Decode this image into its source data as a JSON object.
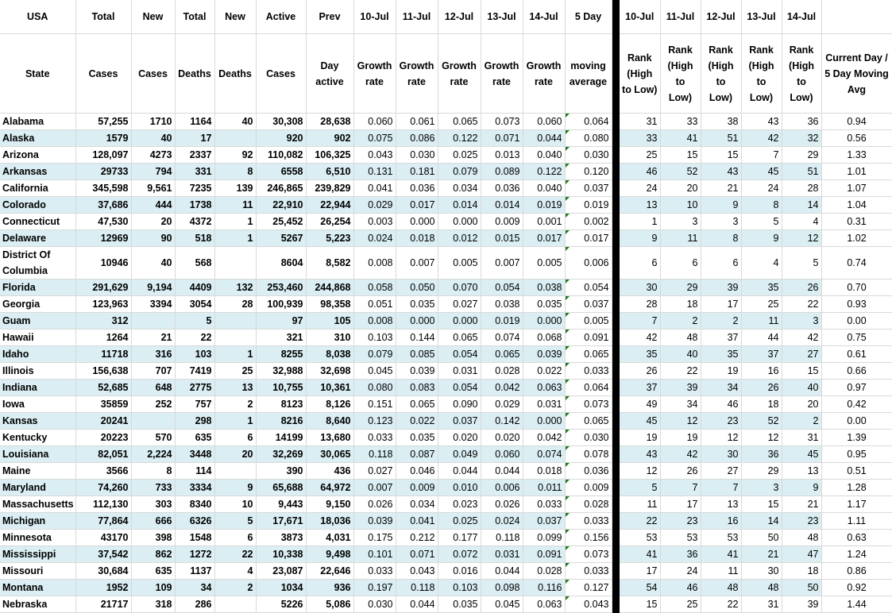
{
  "header_row1": [
    "USA",
    "Total",
    "New",
    "Total",
    "New",
    "Active",
    "Prev",
    "10-Jul",
    "11-Jul",
    "12-Jul",
    "13-Jul",
    "14-Jul",
    "5 Day",
    "10-Jul",
    "11-Jul",
    "12-Jul",
    "13-Jul",
    "14-Jul",
    ""
  ],
  "header_row2": [
    "State",
    "Cases",
    "Cases",
    "Deaths",
    "Deaths",
    "Cases",
    "Day active",
    "Growth rate",
    "Growth rate",
    "Growth rate",
    "Growth rate",
    "Growth rate",
    "moving average",
    "Rank (High to Low)",
    "Rank (High to Low)",
    "Rank (High to Low)",
    "Rank (High to Low)",
    "Rank (High to Low)",
    "Current Day / 5 Day Moving Avg"
  ],
  "colors": {
    "stripe": "#daeef3",
    "separator": "#000000",
    "gridline": "#d9d9d9",
    "formula_marker": "#1e7b1e"
  },
  "rows": [
    [
      "Alabama",
      "57,255",
      "1710",
      "1164",
      "40",
      "30,308",
      "28,638",
      "0.060",
      "0.061",
      "0.065",
      "0.073",
      "0.060",
      "0.064",
      "31",
      "33",
      "38",
      "43",
      "36",
      "0.94"
    ],
    [
      "Alaska",
      "1579",
      "40",
      "17",
      "",
      "920",
      "902",
      "0.075",
      "0.086",
      "0.122",
      "0.071",
      "0.044",
      "0.080",
      "33",
      "41",
      "51",
      "42",
      "32",
      "0.56"
    ],
    [
      "Arizona",
      "128,097",
      "4273",
      "2337",
      "92",
      "110,082",
      "106,325",
      "0.043",
      "0.030",
      "0.025",
      "0.013",
      "0.040",
      "0.030",
      "25",
      "15",
      "15",
      "7",
      "29",
      "1.33"
    ],
    [
      "Arkansas",
      "29733",
      "794",
      "331",
      "8",
      "6558",
      "6,510",
      "0.131",
      "0.181",
      "0.079",
      "0.089",
      "0.122",
      "0.120",
      "46",
      "52",
      "43",
      "45",
      "51",
      "1.01"
    ],
    [
      "California",
      "345,598",
      "9,561",
      "7235",
      "139",
      "246,865",
      "239,829",
      "0.041",
      "0.036",
      "0.034",
      "0.036",
      "0.040",
      "0.037",
      "24",
      "20",
      "21",
      "24",
      "28",
      "1.07"
    ],
    [
      "Colorado",
      "37,686",
      "444",
      "1738",
      "11",
      "22,910",
      "22,944",
      "0.029",
      "0.017",
      "0.014",
      "0.014",
      "0.019",
      "0.019",
      "13",
      "10",
      "9",
      "8",
      "14",
      "1.04"
    ],
    [
      "Connecticut",
      "47,530",
      "20",
      "4372",
      "1",
      "25,452",
      "26,254",
      "0.003",
      "0.000",
      "0.000",
      "0.009",
      "0.001",
      "0.002",
      "1",
      "3",
      "3",
      "5",
      "4",
      "0.31"
    ],
    [
      "Delaware",
      "12969",
      "90",
      "518",
      "1",
      "5267",
      "5,223",
      "0.024",
      "0.018",
      "0.012",
      "0.015",
      "0.017",
      "0.017",
      "9",
      "11",
      "8",
      "9",
      "12",
      "1.02"
    ],
    [
      "District Of Columbia",
      "10946",
      "40",
      "568",
      "",
      "8604",
      "8,582",
      "0.008",
      "0.007",
      "0.005",
      "0.007",
      "0.005",
      "0.006",
      "6",
      "6",
      "6",
      "4",
      "5",
      "0.74"
    ],
    [
      "Florida",
      "291,629",
      "9,194",
      "4409",
      "132",
      "253,460",
      "244,868",
      "0.058",
      "0.050",
      "0.070",
      "0.054",
      "0.038",
      "0.054",
      "30",
      "29",
      "39",
      "35",
      "26",
      "0.70"
    ],
    [
      "Georgia",
      "123,963",
      "3394",
      "3054",
      "28",
      "100,939",
      "98,358",
      "0.051",
      "0.035",
      "0.027",
      "0.038",
      "0.035",
      "0.037",
      "28",
      "18",
      "17",
      "25",
      "22",
      "0.93"
    ],
    [
      "Guam",
      "312",
      "",
      "5",
      "",
      "97",
      "105",
      "0.008",
      "0.000",
      "0.000",
      "0.019",
      "0.000",
      "0.005",
      "7",
      "2",
      "2",
      "11",
      "3",
      "0.00"
    ],
    [
      "Hawaii",
      "1264",
      "21",
      "22",
      "",
      "321",
      "310",
      "0.103",
      "0.144",
      "0.065",
      "0.074",
      "0.068",
      "0.091",
      "42",
      "48",
      "37",
      "44",
      "42",
      "0.75"
    ],
    [
      "Idaho",
      "11718",
      "316",
      "103",
      "1",
      "8255",
      "8,038",
      "0.079",
      "0.085",
      "0.054",
      "0.065",
      "0.039",
      "0.065",
      "35",
      "40",
      "35",
      "37",
      "27",
      "0.61"
    ],
    [
      "Illinois",
      "156,638",
      "707",
      "7419",
      "25",
      "32,988",
      "32,698",
      "0.045",
      "0.039",
      "0.031",
      "0.028",
      "0.022",
      "0.033",
      "26",
      "22",
      "19",
      "16",
      "15",
      "0.66"
    ],
    [
      "Indiana",
      "52,685",
      "648",
      "2775",
      "13",
      "10,755",
      "10,361",
      "0.080",
      "0.083",
      "0.054",
      "0.042",
      "0.063",
      "0.064",
      "37",
      "39",
      "34",
      "26",
      "40",
      "0.97"
    ],
    [
      "Iowa",
      "35859",
      "252",
      "757",
      "2",
      "8123",
      "8,126",
      "0.151",
      "0.065",
      "0.090",
      "0.029",
      "0.031",
      "0.073",
      "49",
      "34",
      "46",
      "18",
      "20",
      "0.42"
    ],
    [
      "Kansas",
      "20241",
      "",
      "298",
      "1",
      "8216",
      "8,640",
      "0.123",
      "0.022",
      "0.037",
      "0.142",
      "0.000",
      "0.065",
      "45",
      "12",
      "23",
      "52",
      "2",
      "0.00"
    ],
    [
      "Kentucky",
      "20223",
      "570",
      "635",
      "6",
      "14199",
      "13,680",
      "0.033",
      "0.035",
      "0.020",
      "0.020",
      "0.042",
      "0.030",
      "19",
      "19",
      "12",
      "12",
      "31",
      "1.39"
    ],
    [
      "Louisiana",
      "82,051",
      "2,224",
      "3448",
      "20",
      "32,269",
      "30,065",
      "0.118",
      "0.087",
      "0.049",
      "0.060",
      "0.074",
      "0.078",
      "43",
      "42",
      "30",
      "36",
      "45",
      "0.95"
    ],
    [
      "Maine",
      "3566",
      "8",
      "114",
      "",
      "390",
      "436",
      "0.027",
      "0.046",
      "0.044",
      "0.044",
      "0.018",
      "0.036",
      "12",
      "26",
      "27",
      "29",
      "13",
      "0.51"
    ],
    [
      "Maryland",
      "74,260",
      "733",
      "3334",
      "9",
      "65,688",
      "64,972",
      "0.007",
      "0.009",
      "0.010",
      "0.006",
      "0.011",
      "0.009",
      "5",
      "7",
      "7",
      "3",
      "9",
      "1.28"
    ],
    [
      "Massachusetts",
      "112,130",
      "303",
      "8340",
      "10",
      "9,443",
      "9,150",
      "0.026",
      "0.034",
      "0.023",
      "0.026",
      "0.033",
      "0.028",
      "11",
      "17",
      "13",
      "15",
      "21",
      "1.17"
    ],
    [
      "Michigan",
      "77,864",
      "666",
      "6326",
      "5",
      "17,671",
      "18,036",
      "0.039",
      "0.041",
      "0.025",
      "0.024",
      "0.037",
      "0.033",
      "22",
      "23",
      "16",
      "14",
      "23",
      "1.11"
    ],
    [
      "Minnesota",
      "43170",
      "398",
      "1548",
      "6",
      "3873",
      "4,031",
      "0.175",
      "0.212",
      "0.177",
      "0.118",
      "0.099",
      "0.156",
      "53",
      "53",
      "53",
      "50",
      "48",
      "0.63"
    ],
    [
      "Mississippi",
      "37,542",
      "862",
      "1272",
      "22",
      "10,338",
      "9,498",
      "0.101",
      "0.071",
      "0.072",
      "0.031",
      "0.091",
      "0.073",
      "41",
      "36",
      "41",
      "21",
      "47",
      "1.24"
    ],
    [
      "Missouri",
      "30,684",
      "635",
      "1137",
      "4",
      "23,087",
      "22,646",
      "0.033",
      "0.043",
      "0.016",
      "0.044",
      "0.028",
      "0.033",
      "17",
      "24",
      "11",
      "30",
      "18",
      "0.86"
    ],
    [
      "Montana",
      "1952",
      "109",
      "34",
      "2",
      "1034",
      "936",
      "0.197",
      "0.118",
      "0.103",
      "0.098",
      "0.116",
      "0.127",
      "54",
      "46",
      "48",
      "48",
      "50",
      "0.92"
    ],
    [
      "Nebraska",
      "21717",
      "318",
      "286",
      "",
      "5226",
      "5,086",
      "0.030",
      "0.044",
      "0.035",
      "0.045",
      "0.063",
      "0.043",
      "15",
      "25",
      "22",
      "31",
      "39",
      "1.44"
    ]
  ]
}
